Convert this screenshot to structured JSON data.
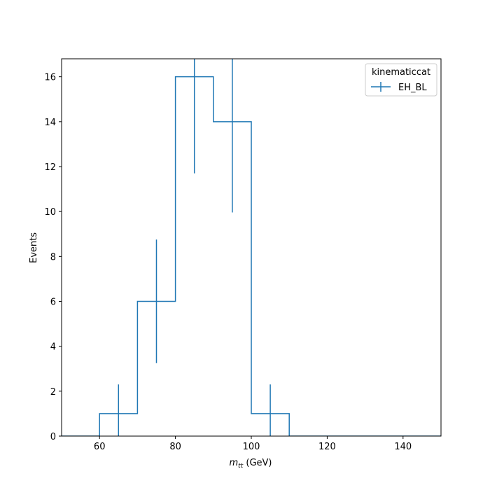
{
  "chart_data": {
    "type": "histogram-step",
    "xlabel_var": "m",
    "xlabel_sub": "tt",
    "xlabel_unit": " (GeV)",
    "ylabel": "Events",
    "xlim": [
      50,
      150
    ],
    "ylim": [
      0,
      16.8
    ],
    "xticks": [
      60,
      80,
      100,
      120,
      140
    ],
    "yticks": [
      0,
      2,
      4,
      6,
      8,
      10,
      12,
      14,
      16
    ],
    "bin_edges": [
      50,
      60,
      70,
      80,
      90,
      100,
      110,
      120,
      130,
      140,
      150
    ],
    "grid": false,
    "legend": {
      "title": "kinematiccat",
      "position": "top-right"
    },
    "series": [
      {
        "name": "EH_BL",
        "color": "#1f77b4",
        "values": [
          0,
          1,
          6,
          16,
          14,
          1,
          0,
          0,
          0,
          0
        ]
      }
    ]
  }
}
